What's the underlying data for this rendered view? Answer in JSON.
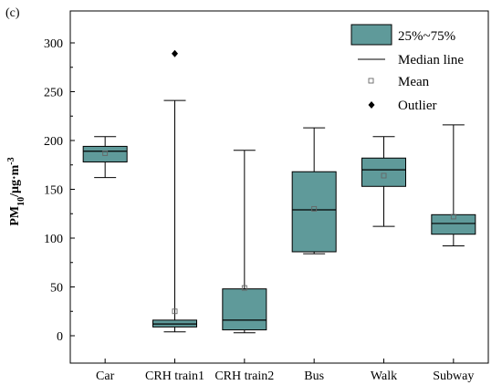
{
  "chart_data": {
    "type": "box",
    "panel_label": "(c)",
    "ylabel": {
      "main": "PM",
      "sub": "10",
      "rest": "/μg·m",
      "sup": "-3"
    },
    "ylim": [
      -30,
      330
    ],
    "yticks": [
      0,
      50,
      100,
      150,
      200,
      250,
      300
    ],
    "categories": [
      "Car",
      "CRH train1",
      "CRH train2",
      "Bus",
      "Walk",
      "Subway"
    ],
    "box_color": "#5f9a9a",
    "boxes": [
      {
        "category": "Car",
        "whisker_low": 162,
        "q1": 178,
        "median": 189,
        "q3": 194,
        "whisker_high": 204,
        "mean": 187,
        "outliers": []
      },
      {
        "category": "CRH train1",
        "whisker_low": 4,
        "q1": 9,
        "median": 12,
        "q3": 16,
        "whisker_high": 241,
        "mean": 25,
        "outliers": [
          289
        ]
      },
      {
        "category": "CRH train2",
        "whisker_low": 3,
        "q1": 6,
        "median": 16,
        "q3": 48,
        "whisker_high": 190,
        "mean": 49,
        "outliers": []
      },
      {
        "category": "Bus",
        "whisker_low": 84,
        "q1": 86,
        "median": 129,
        "q3": 168,
        "whisker_high": 213,
        "mean": 130,
        "outliers": []
      },
      {
        "category": "Walk",
        "whisker_low": 112,
        "q1": 153,
        "median": 170,
        "q3": 182,
        "whisker_high": 204,
        "mean": 164,
        "outliers": []
      },
      {
        "category": "Subway",
        "whisker_low": 92,
        "q1": 104,
        "median": 115,
        "q3": 124,
        "whisker_high": 216,
        "mean": 122,
        "outliers": []
      }
    ],
    "legend": {
      "placement": "top-right",
      "entries": [
        {
          "symbol": "box",
          "label": "25%~75%"
        },
        {
          "symbol": "line",
          "label": "Median line"
        },
        {
          "symbol": "open-square",
          "label": "Mean"
        },
        {
          "symbol": "diamond",
          "label": "Outlier"
        }
      ]
    }
  }
}
